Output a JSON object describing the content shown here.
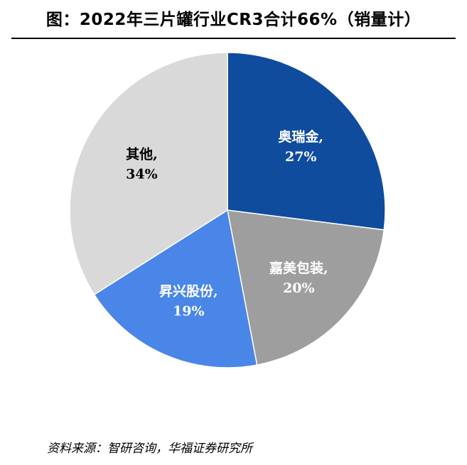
{
  "title": "图：2022年三片罐行业CR3合计66%（销量计）",
  "source": "资料来源：智研咨询，华福证券研究所",
  "chart_data": {
    "type": "pie",
    "slices": [
      {
        "name": "奥瑞金",
        "value": 27,
        "display": "27%",
        "color": "#0f4c9e",
        "label_color": "#ffffff"
      },
      {
        "name": "嘉美包装",
        "value": 20,
        "display": "20%",
        "color": "#9e9e9e",
        "label_color": "#ffffff"
      },
      {
        "name": "昇兴股份",
        "value": 19,
        "display": "19%",
        "color": "#4a86e8",
        "label_color": "#ffffff"
      },
      {
        "name": "其他",
        "value": 34,
        "display": "34%",
        "color": "#d9d9d9",
        "label_color": "#000000"
      }
    ],
    "start_angle_deg": 0,
    "direction": "clockwise",
    "legend": "none"
  }
}
